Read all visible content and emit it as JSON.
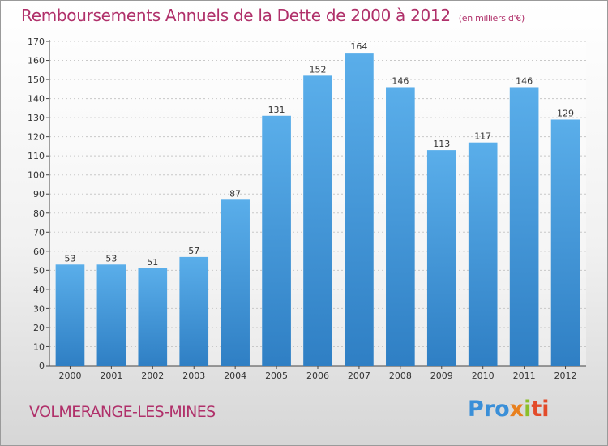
{
  "title": "Remboursements Annuels de la Dette de 2000 à 2012",
  "unit": "(en milliers d'€)",
  "city": "VOLMERANGE-LES-MINES",
  "logo": {
    "parts": [
      "Pro",
      "x",
      "i",
      "ti"
    ]
  },
  "colors": {
    "bar_light": "#5aaeea",
    "bar_dark": "#2f7fc4",
    "title": "#b0306a",
    "axis": "#444444"
  },
  "chart_data": {
    "type": "bar",
    "title": "Remboursements Annuels de la Dette de 2000 à 2012",
    "xlabel": "",
    "ylabel": "",
    "categories": [
      "2000",
      "2001",
      "2002",
      "2003",
      "2004",
      "2005",
      "2006",
      "2007",
      "2008",
      "2009",
      "2010",
      "2011",
      "2012"
    ],
    "values": [
      53,
      53,
      51,
      57,
      87,
      131,
      152,
      164,
      146,
      113,
      117,
      146,
      129
    ],
    "ylim": [
      0,
      170
    ],
    "yticks": [
      0,
      10,
      20,
      30,
      40,
      50,
      60,
      70,
      80,
      90,
      100,
      110,
      120,
      130,
      140,
      150,
      160,
      170
    ],
    "grid": true
  }
}
